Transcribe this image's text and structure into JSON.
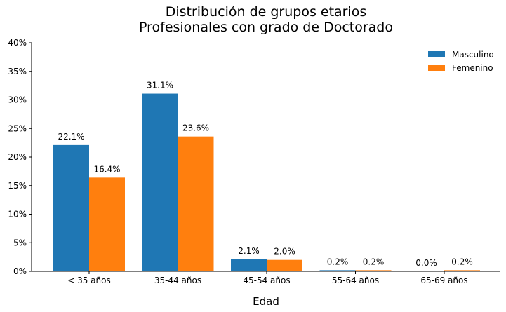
{
  "chart_data": {
    "type": "bar",
    "title_line1": "Distribución de grupos etarios",
    "title_line2": "Profesionales con grado de Doctorado",
    "xlabel": "Edad",
    "ylabel": "",
    "categories": [
      "< 35 años",
      "35-44 años",
      "45-54 años",
      "55-64 años",
      "65-69 años"
    ],
    "series": [
      {
        "name": "Masculino",
        "color": "#1f77b4",
        "values": [
          22.1,
          31.1,
          2.1,
          0.2,
          0.0
        ],
        "labels": [
          "22.1%",
          "31.1%",
          "2.1%",
          "0.2%",
          "0.0%"
        ]
      },
      {
        "name": "Femenino",
        "color": "#ff7f0e",
        "values": [
          16.4,
          23.6,
          2.0,
          0.2,
          0.2
        ],
        "labels": [
          "16.4%",
          "23.6%",
          "2.0%",
          "0.2%",
          "0.2%"
        ]
      }
    ],
    "ylim": [
      0,
      40
    ],
    "yticks": [
      0,
      5,
      10,
      15,
      20,
      25,
      30,
      35,
      40
    ],
    "ytick_labels": [
      "0%",
      "5%",
      "10%",
      "15%",
      "20%",
      "25%",
      "30%",
      "35%",
      "40%"
    ],
    "grid": false,
    "legend_position": "top-right"
  }
}
